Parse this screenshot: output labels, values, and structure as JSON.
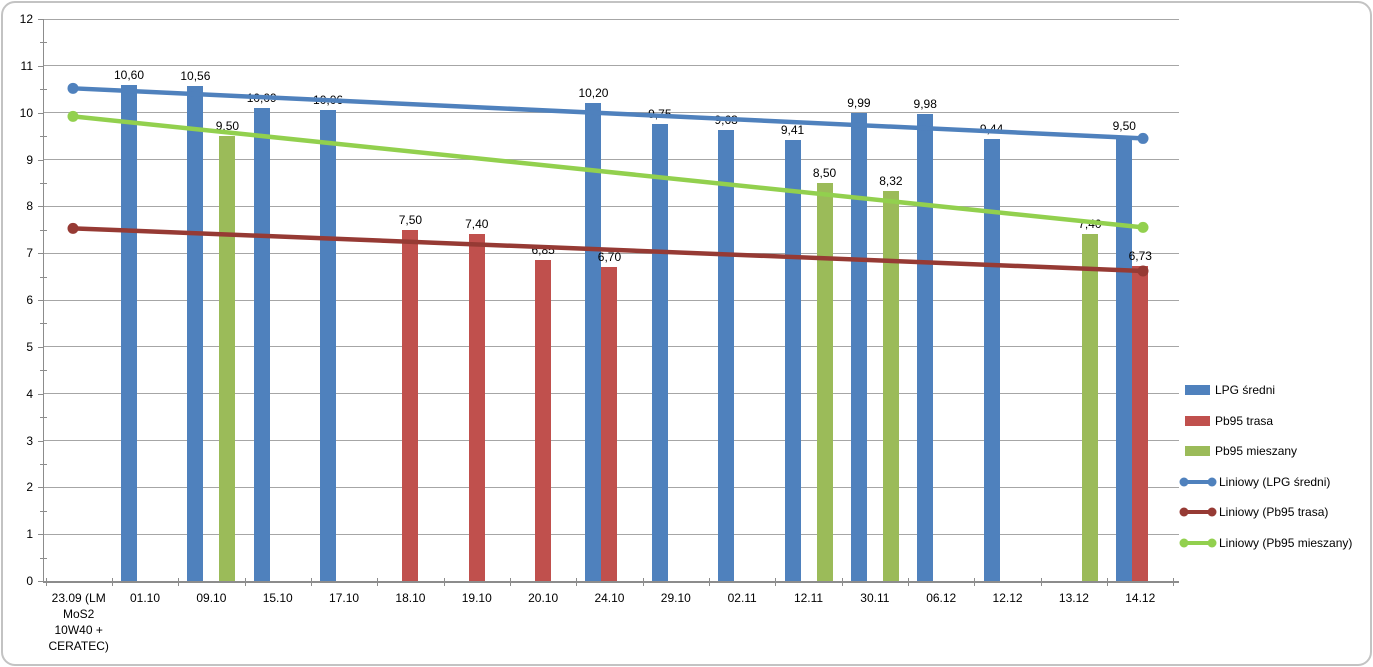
{
  "frame": {
    "background": "#FFFFFF",
    "border_color": "#C3C3C3"
  },
  "chart_data": {
    "type": "bar",
    "title": "",
    "xlabel": "",
    "ylabel": "",
    "ylim": [
      0,
      12
    ],
    "ytick_step": 1,
    "yticks": [
      "0",
      "1",
      "2",
      "3",
      "4",
      "5",
      "6",
      "7",
      "8",
      "9",
      "10",
      "11",
      "12"
    ],
    "grid": true,
    "legend_position": "right",
    "decimal_separator": ",",
    "axis_color": "#8C8C8C",
    "grid_color": "#A6A6A6",
    "text_color": "#000000",
    "categories": [
      "23.09 (LM MoS2 10W40 + CERATEC)",
      "01.10",
      "09.10",
      "15.10",
      "17.10",
      "18.10",
      "19.10",
      "20.10",
      "24.10",
      "29.10",
      "02.11",
      "12.11",
      "30.11",
      "06.12",
      "12.12",
      "13.12",
      "14.12"
    ],
    "series": [
      {
        "name": "LPG średni",
        "color": "#4F81BD",
        "values": [
          null,
          10.6,
          10.56,
          10.09,
          10.06,
          null,
          null,
          null,
          10.2,
          9.75,
          9.63,
          9.41,
          9.99,
          9.98,
          9.44,
          null,
          9.5
        ],
        "labels": [
          "",
          "10,60",
          "10,56",
          "10,09",
          "10,06",
          "",
          "",
          "",
          "10,20",
          "9,75",
          "9,63",
          "9,41",
          "9,99",
          "9,98",
          "9,44",
          "",
          "9,50"
        ]
      },
      {
        "name": "Pb95 trasa",
        "color": "#C0504D",
        "values": [
          null,
          null,
          null,
          null,
          null,
          7.5,
          7.4,
          6.85,
          6.7,
          null,
          null,
          null,
          null,
          null,
          null,
          null,
          6.73
        ],
        "labels": [
          "",
          "",
          "",
          "",
          "",
          "7,50",
          "7,40",
          "6,85",
          "6,70",
          "",
          "",
          "",
          "",
          "",
          "",
          "",
          "6,73"
        ]
      },
      {
        "name": "Pb95 mieszany",
        "color": "#9BBB59",
        "values": [
          null,
          null,
          9.5,
          null,
          null,
          null,
          null,
          null,
          null,
          null,
          null,
          8.5,
          8.32,
          null,
          null,
          7.4,
          null
        ],
        "labels": [
          "",
          "",
          "9,50",
          "",
          "",
          "",
          "",
          "",
          "",
          "",
          "",
          "8,50",
          "8,32",
          "",
          "",
          "7,40",
          ""
        ]
      }
    ],
    "trendlines": [
      {
        "name": "Liniowy (LPG średni)",
        "color": "#4F81BD",
        "start": 10.52,
        "end": 9.45
      },
      {
        "name": "Liniowy (Pb95 trasa)",
        "color": "#963A34",
        "start": 7.53,
        "end": 6.62
      },
      {
        "name": "Liniowy (Pb95 mieszany)",
        "color": "#92D04E",
        "start": 9.92,
        "end": 7.55
      }
    ],
    "legend": [
      "LPG średni",
      "Pb95 trasa",
      "Pb95 mieszany",
      "Liniowy (LPG średni)",
      "Liniowy (Pb95 trasa)",
      "Liniowy (Pb95 mieszany)"
    ]
  }
}
